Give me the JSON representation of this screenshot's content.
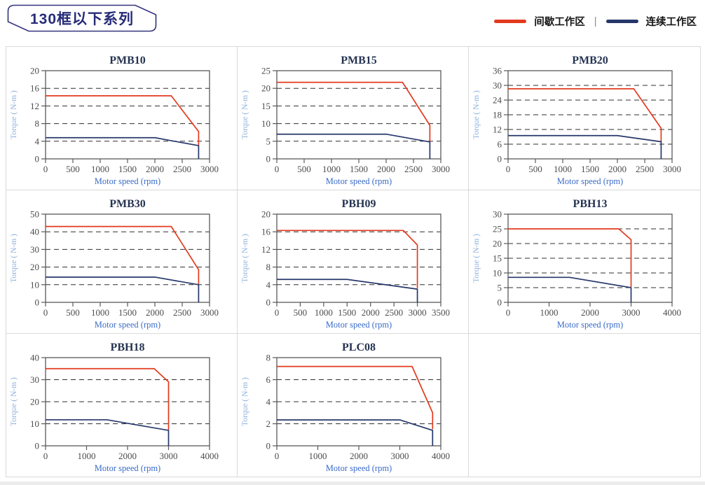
{
  "page": {
    "series_title": "130框以下系列",
    "legend": {
      "intermittent_label": "间歇工作区",
      "continuous_label": "连续工作区",
      "separator": "|",
      "intermittent_color": "#e23a1e",
      "continuous_color": "#26386b"
    },
    "colors": {
      "badge_border": "#33337e",
      "badge_text": "#272c77",
      "cell_border": "#d9d9d9",
      "title_color": "#263452",
      "x_label_color": "#3a6cc8",
      "y_label_color": "#8fb2dd"
    }
  },
  "chart_data": [
    {
      "type": "line",
      "title": "PMB10",
      "xlabel": "Motor speed (rpm)",
      "ylabel": "Torque ( N-m )",
      "xlim": [
        0,
        3000
      ],
      "xtick_step": 500,
      "ylim": [
        0,
        20
      ],
      "ytick_step": 4,
      "grid": "dashed-horizontal",
      "legend_position": "none",
      "series": [
        {
          "name": "间歇工作区",
          "color": "#e23a1e",
          "points": [
            [
              0,
              14.3
            ],
            [
              2300,
              14.3
            ],
            [
              2800,
              6.2
            ],
            [
              2800,
              3.0
            ]
          ]
        },
        {
          "name": "连续工作区",
          "color": "#26386b",
          "points": [
            [
              0,
              4.8
            ],
            [
              2000,
              4.8
            ],
            [
              2800,
              3.0
            ],
            [
              2800,
              0
            ]
          ]
        }
      ]
    },
    {
      "type": "line",
      "title": "PMB15",
      "xlabel": "Motor speed (rpm)",
      "ylabel": "Torque ( N-m )",
      "xlim": [
        0,
        3000
      ],
      "xtick_step": 500,
      "ylim": [
        0,
        25
      ],
      "ytick_step": 5,
      "grid": "dashed-horizontal",
      "legend_position": "none",
      "series": [
        {
          "name": "间歇工作区",
          "color": "#e23a1e",
          "points": [
            [
              0,
              21.7
            ],
            [
              2300,
              21.7
            ],
            [
              2800,
              9.5
            ],
            [
              2800,
              4.8
            ]
          ]
        },
        {
          "name": "连续工作区",
          "color": "#26386b",
          "points": [
            [
              0,
              7.0
            ],
            [
              2000,
              7.0
            ],
            [
              2800,
              4.8
            ],
            [
              2800,
              0
            ]
          ]
        }
      ]
    },
    {
      "type": "line",
      "title": "PMB20",
      "xlabel": "Motor speed (rpm)",
      "ylabel": "Torque ( N-m )",
      "xlim": [
        0,
        3000
      ],
      "xtick_step": 500,
      "ylim": [
        0,
        36
      ],
      "ytick_step": 6,
      "grid": "dashed-horizontal",
      "legend_position": "none",
      "series": [
        {
          "name": "间歇工作区",
          "color": "#e23a1e",
          "points": [
            [
              0,
              28.6
            ],
            [
              2300,
              28.6
            ],
            [
              2800,
              12.5
            ],
            [
              2800,
              7.0
            ]
          ]
        },
        {
          "name": "连续工作区",
          "color": "#26386b",
          "points": [
            [
              0,
              9.5
            ],
            [
              2000,
              9.5
            ],
            [
              2800,
              7.0
            ],
            [
              2800,
              0
            ]
          ]
        }
      ]
    },
    {
      "type": "line",
      "title": "PMB30",
      "xlabel": "Motor speed (rpm)",
      "ylabel": "Torque ( N-m )",
      "xlim": [
        0,
        3000
      ],
      "xtick_step": 500,
      "ylim": [
        0,
        50
      ],
      "ytick_step": 10,
      "grid": "dashed-horizontal",
      "legend_position": "none",
      "series": [
        {
          "name": "间歇工作区",
          "color": "#e23a1e",
          "points": [
            [
              0,
              43
            ],
            [
              2300,
              43
            ],
            [
              2800,
              18.5
            ],
            [
              2800,
              10
            ]
          ]
        },
        {
          "name": "连续工作区",
          "color": "#26386b",
          "points": [
            [
              0,
              14.3
            ],
            [
              2000,
              14.3
            ],
            [
              2800,
              10
            ],
            [
              2800,
              0
            ]
          ]
        }
      ]
    },
    {
      "type": "line",
      "title": "PBH09",
      "xlabel": "Motor speed (rpm)",
      "ylabel": "Torque ( N-m )",
      "xlim": [
        0,
        3500
      ],
      "xtick_step": 500,
      "ylim": [
        0,
        20
      ],
      "ytick_step": 4,
      "grid": "dashed-horizontal",
      "legend_position": "none",
      "series": [
        {
          "name": "间歇工作区",
          "color": "#e23a1e",
          "points": [
            [
              0,
              16.3
            ],
            [
              2700,
              16.3
            ],
            [
              3000,
              13
            ],
            [
              3000,
              3.2
            ]
          ]
        },
        {
          "name": "连续工作区",
          "color": "#26386b",
          "points": [
            [
              0,
              5.2
            ],
            [
              1500,
              5.2
            ],
            [
              3000,
              3.0
            ],
            [
              3000,
              0
            ]
          ]
        }
      ]
    },
    {
      "type": "line",
      "title": "PBH13",
      "xlabel": "Motor speed (rpm)",
      "ylabel": "Torque ( N-m )",
      "xlim": [
        0,
        4000
      ],
      "xtick_step": 1000,
      "ylim": [
        0,
        30
      ],
      "ytick_step": 5,
      "grid": "dashed-horizontal",
      "legend_position": "none",
      "series": [
        {
          "name": "间歇工作区",
          "color": "#e23a1e",
          "points": [
            [
              0,
              25
            ],
            [
              2700,
              25
            ],
            [
              3000,
              21.3
            ],
            [
              3000,
              5.2
            ]
          ]
        },
        {
          "name": "连续工作区",
          "color": "#26386b",
          "points": [
            [
              0,
              8.5
            ],
            [
              1500,
              8.5
            ],
            [
              3000,
              5.0
            ],
            [
              3000,
              0
            ]
          ]
        }
      ]
    },
    {
      "type": "line",
      "title": "PBH18",
      "xlabel": "Motor speed (rpm)",
      "ylabel": "Torque ( N-m )",
      "xlim": [
        0,
        4000
      ],
      "xtick_step": 1000,
      "ylim": [
        0,
        40
      ],
      "ytick_step": 10,
      "grid": "dashed-horizontal",
      "legend_position": "none",
      "series": [
        {
          "name": "间歇工作区",
          "color": "#e23a1e",
          "points": [
            [
              0,
              35
            ],
            [
              2650,
              35
            ],
            [
              3000,
              29
            ],
            [
              3000,
              7.2
            ]
          ]
        },
        {
          "name": "连续工作区",
          "color": "#26386b",
          "points": [
            [
              0,
              11.8
            ],
            [
              1500,
              11.8
            ],
            [
              3000,
              7.0
            ],
            [
              3000,
              0
            ]
          ]
        }
      ]
    },
    {
      "type": "line",
      "title": "PLC08",
      "xlabel": "Motor speed (rpm)",
      "ylabel": "Torque ( N-m )",
      "xlim": [
        0,
        4000
      ],
      "xtick_step": 1000,
      "ylim": [
        0,
        8
      ],
      "ytick_step": 2,
      "grid": "dashed-horizontal",
      "legend_position": "none",
      "series": [
        {
          "name": "间歇工作区",
          "color": "#e23a1e",
          "points": [
            [
              0,
              7.2
            ],
            [
              3300,
              7.2
            ],
            [
              3800,
              3.0
            ],
            [
              3800,
              1.5
            ]
          ]
        },
        {
          "name": "连续工作区",
          "color": "#26386b",
          "points": [
            [
              0,
              2.35
            ],
            [
              3000,
              2.35
            ],
            [
              3800,
              1.4
            ],
            [
              3800,
              0
            ]
          ]
        }
      ]
    }
  ]
}
